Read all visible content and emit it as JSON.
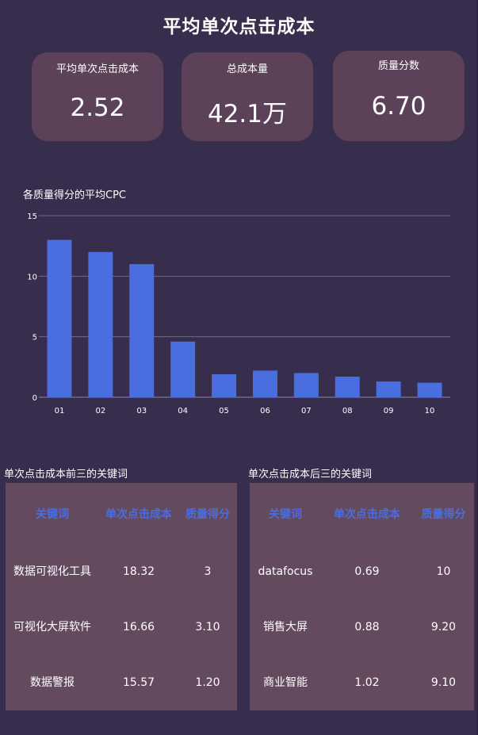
{
  "page": {
    "title": "平均单次点击成本"
  },
  "kpis": [
    {
      "label": "平均单次点击成本",
      "value": "2.52"
    },
    {
      "label": "总成本量",
      "value": "42.1万"
    },
    {
      "label": "质量分数",
      "value": "6.70"
    }
  ],
  "colors": {
    "background": "#372d4d",
    "card": "#5c4258",
    "table_bg": "#644a5f",
    "bar": "#4a6de0",
    "table_header": "#4a6de0"
  },
  "chart_data": {
    "type": "bar",
    "title": "各质量得分的平均CPC",
    "xlabel": "",
    "ylabel": "",
    "categories": [
      "01",
      "02",
      "03",
      "04",
      "05",
      "06",
      "07",
      "08",
      "09",
      "10"
    ],
    "values": [
      13,
      12,
      11,
      4.6,
      1.9,
      2.2,
      2.0,
      1.7,
      1.3,
      1.2
    ],
    "ylim": [
      0,
      15
    ],
    "yticks": [
      0,
      5,
      10,
      15
    ],
    "grid": true
  },
  "tables": {
    "top3": {
      "caption": "单次点击成本前三的关键词",
      "headers": [
        "关键词",
        "单次点击成本",
        "质量得分"
      ],
      "rows": [
        [
          "数据可视化工具",
          "18.32",
          "3"
        ],
        [
          "可视化大屏软件",
          "16.66",
          "3.10"
        ],
        [
          "数据警报",
          "15.57",
          "1.20"
        ]
      ]
    },
    "bottom3": {
      "caption": "单次点击成本后三的关键词",
      "headers": [
        "关键词",
        "单次点击成本",
        "质量得分"
      ],
      "rows": [
        [
          "datafocus",
          "0.69",
          "10"
        ],
        [
          "销售大屏",
          "0.88",
          "9.20"
        ],
        [
          "商业智能",
          "1.02",
          "9.10"
        ]
      ]
    }
  }
}
